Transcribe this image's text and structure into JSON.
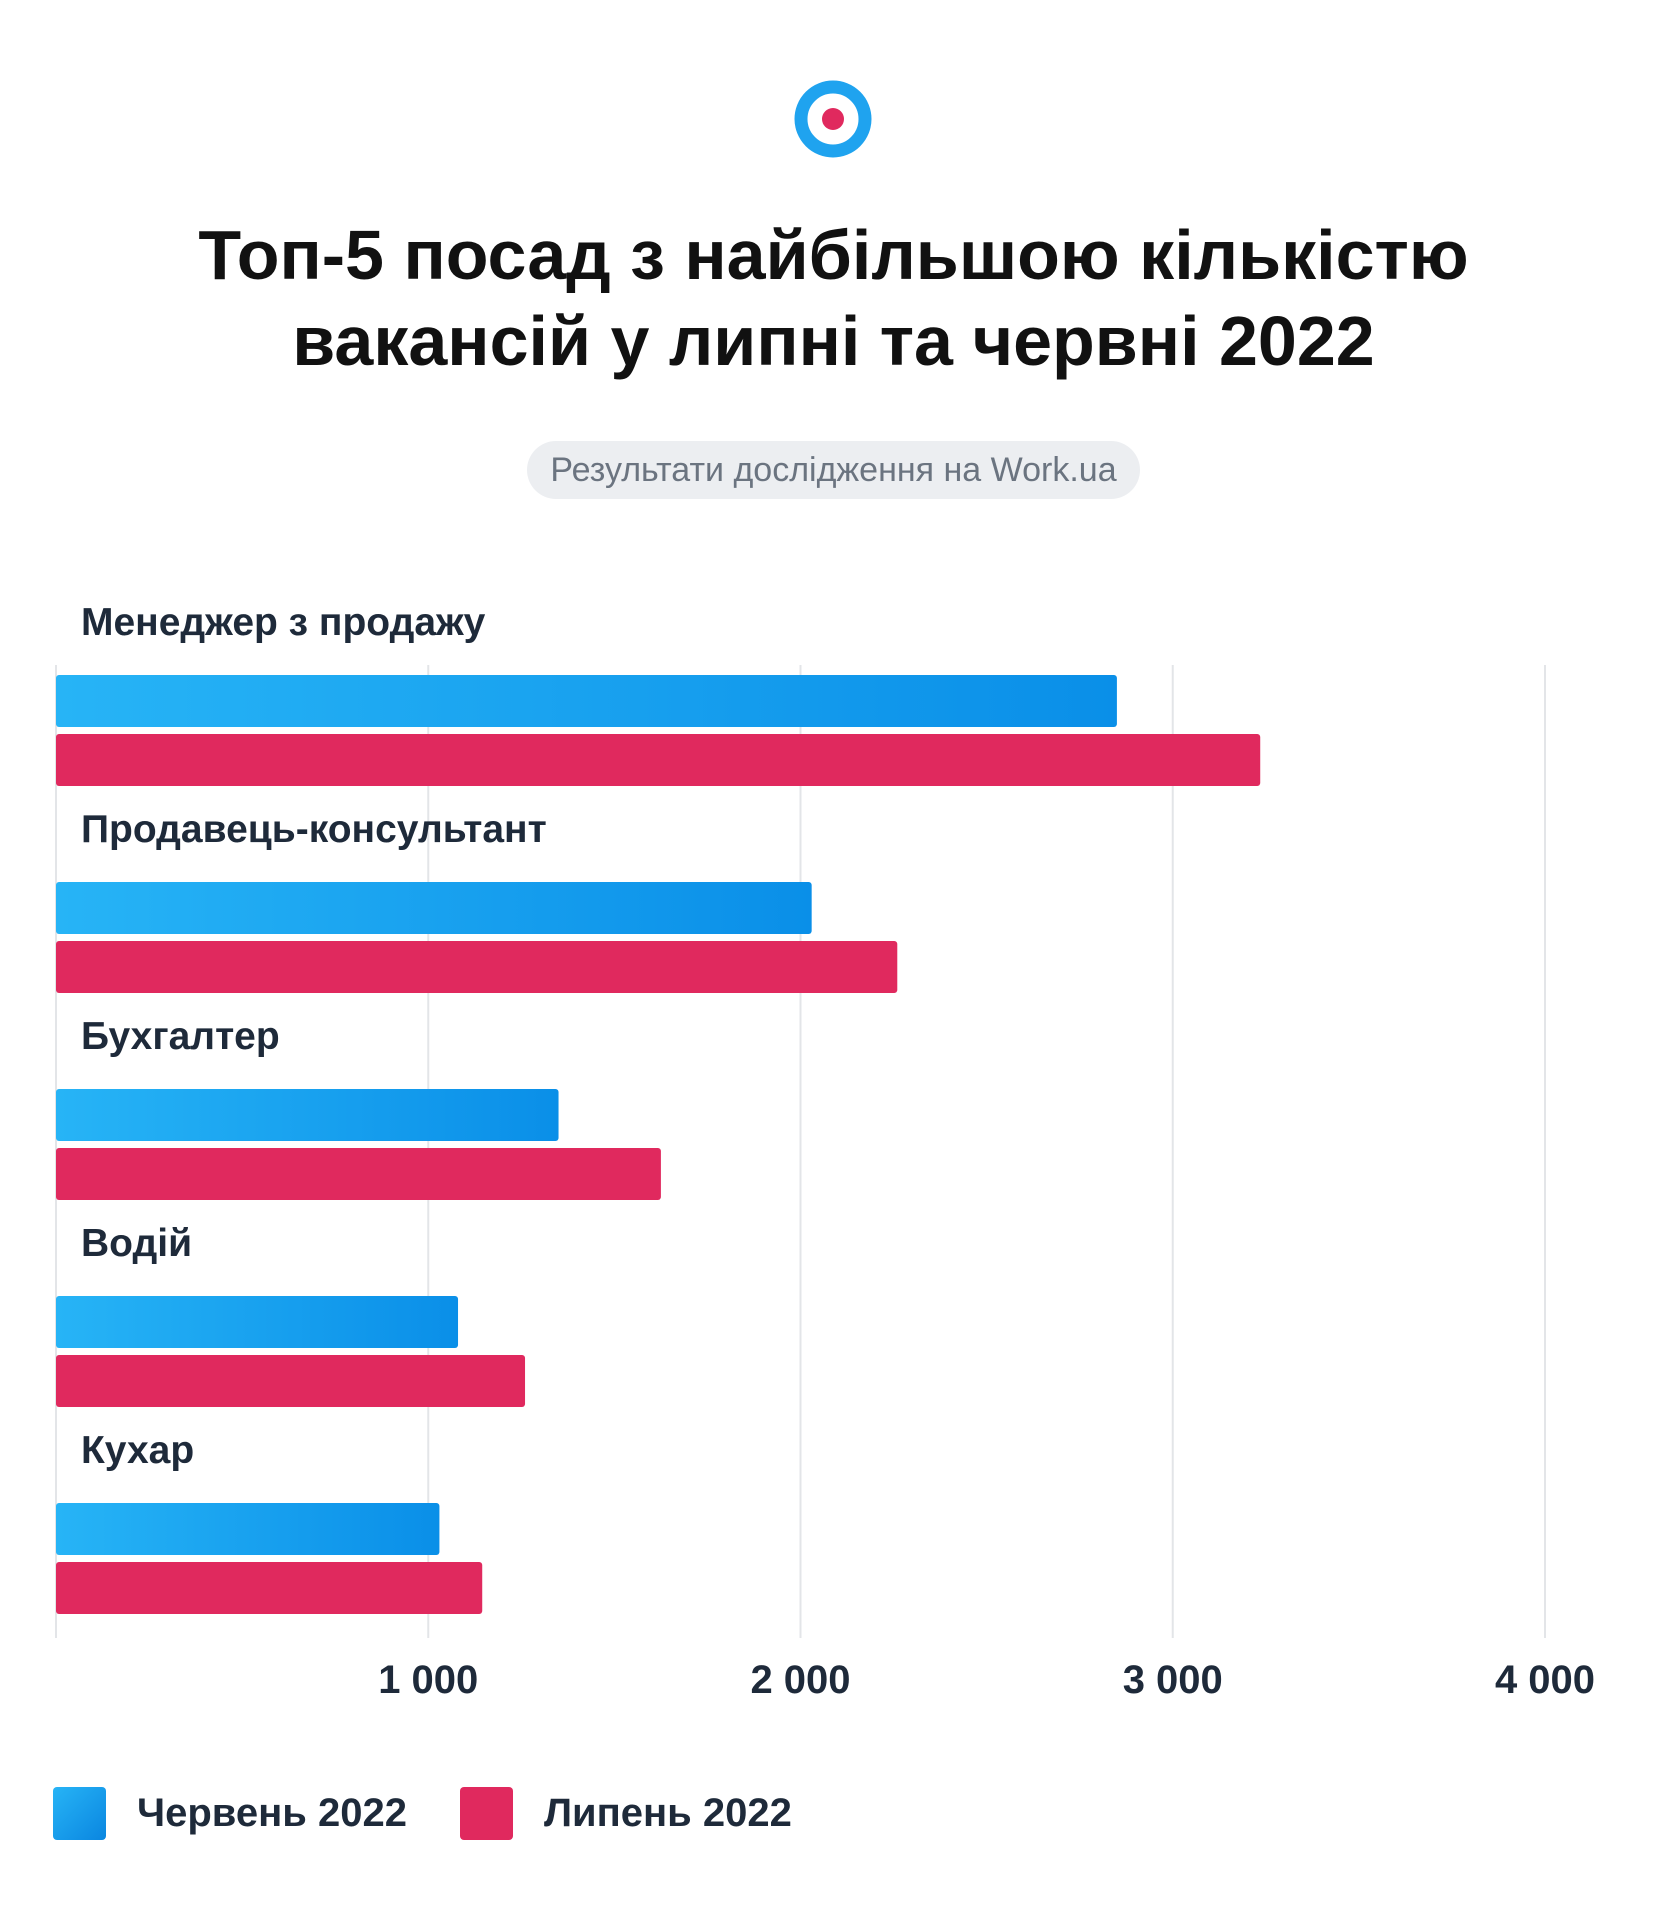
{
  "header": {
    "title_line1": "Топ-5 посад з найбільшою кількістю",
    "title_line2": "вакансій у липні та червні 2022",
    "subtitle": "Результати дослідження на Work.ua"
  },
  "colors": {
    "june": "#0a8fe8",
    "june_light": "#27b4f6",
    "july": "#e0295e",
    "grid": "#e3e5e8",
    "label": "#1e2a3a",
    "logo_ring": "#1fa3ef",
    "logo_dot": "#e0295e"
  },
  "logo": {
    "icon": "target-logo-icon"
  },
  "chart_data": {
    "type": "bar",
    "orientation": "horizontal",
    "categories": [
      "Менеджер з продажу",
      "Продавець-консультант",
      "Бухгалтер",
      "Водій",
      "Кухар"
    ],
    "series": [
      {
        "name": "Червень 2022",
        "values": [
          2850,
          2030,
          1350,
          1080,
          1030
        ]
      },
      {
        "name": "Липень 2022",
        "values": [
          3235,
          2260,
          1625,
          1260,
          1145
        ]
      }
    ],
    "xlim": [
      0,
      4000
    ],
    "xticks": [
      1000,
      2000,
      3000,
      4000
    ],
    "xtick_labels": [
      "1 000",
      "2 000",
      "3 000",
      "4 000"
    ],
    "grid": true,
    "legend": "bottom-left"
  }
}
